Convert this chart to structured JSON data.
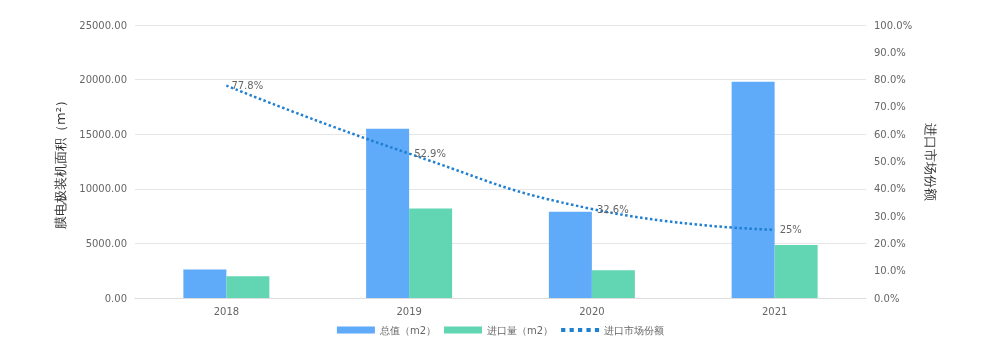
{
  "chart_data": {
    "type": "bar",
    "categories": [
      "2018",
      "2019",
      "2020",
      "2021"
    ],
    "ylabel": "膜电极装机面积（m²）",
    "y2label": "进口市场份额",
    "series": [
      {
        "name": "总值（m2）",
        "color": "#60aafa",
        "values": [
          2600,
          15500,
          7900,
          19800
        ]
      },
      {
        "name": "进口量（m2）",
        "color": "#62d5b2",
        "values": [
          2000,
          8200,
          2550,
          4850
        ]
      },
      {
        "name": "进口市场份额",
        "type": "line",
        "axis": "y2",
        "color": "#1f7fd0",
        "line_style": "dotted",
        "marker": "none",
        "values": [
          77.8,
          52.9,
          32.6,
          25
        ],
        "value_labels": [
          "77.8%",
          "52.9%",
          "32.6%",
          "25%"
        ]
      }
    ],
    "ylim": [
      0,
      25000
    ],
    "yticks": [
      {
        "value": 0,
        "label": "0.00"
      },
      {
        "value": 5000,
        "label": "5000.00"
      },
      {
        "value": 10000,
        "label": "10000.00"
      },
      {
        "value": 15000,
        "label": "15000.00"
      },
      {
        "value": 20000,
        "label": "20000.00"
      },
      {
        "value": 25000,
        "label": "25000.00"
      }
    ],
    "y2lim": [
      0,
      100
    ],
    "y2ticks": [
      {
        "value": 0,
        "label": "0.0%"
      },
      {
        "value": 10,
        "label": "10.0%"
      },
      {
        "value": 20,
        "label": "20.0%"
      },
      {
        "value": 30,
        "label": "30.0%"
      },
      {
        "value": 40,
        "label": "40.0%"
      },
      {
        "value": 50,
        "label": "50.0%"
      },
      {
        "value": 60,
        "label": "60.0%"
      },
      {
        "value": 70,
        "label": "70.0%"
      },
      {
        "value": 80,
        "label": "80.0%"
      },
      {
        "value": 90,
        "label": "90.0%"
      },
      {
        "value": 100,
        "label": "100.0%"
      }
    ],
    "grid": "y",
    "legend": "bottom"
  }
}
